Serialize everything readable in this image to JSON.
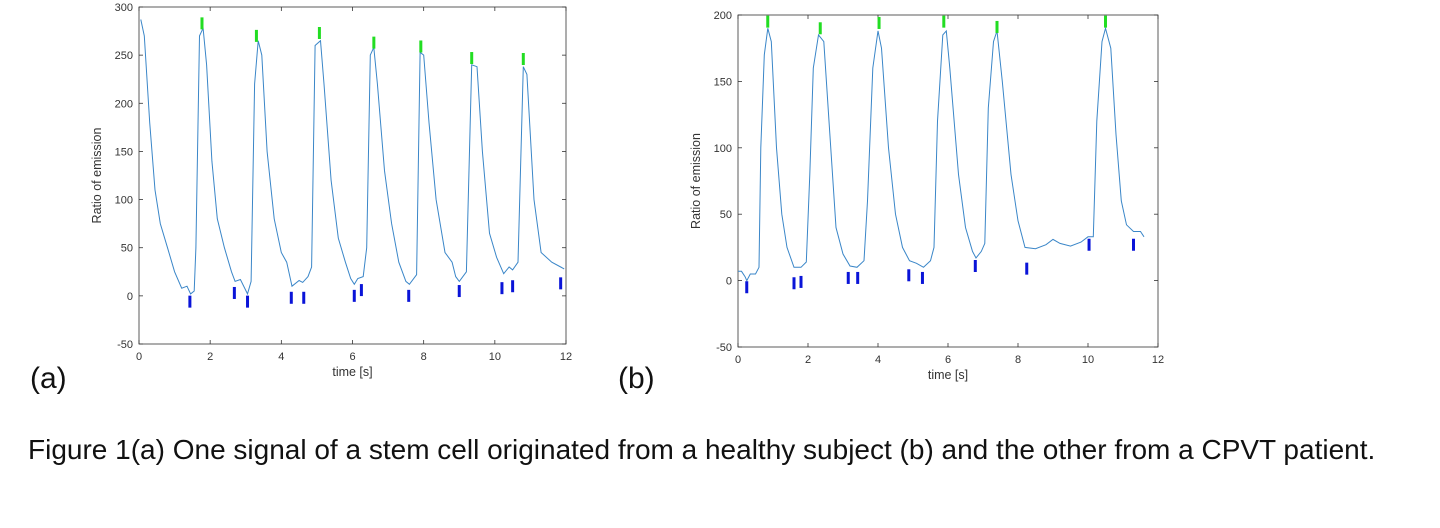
{
  "chart_data": [
    {
      "type": "line",
      "panel_label": "(a)",
      "xlabel": "time [s]",
      "ylabel": "Ratio of emission",
      "xlim": [
        0,
        12
      ],
      "ylim": [
        -50,
        300
      ],
      "xticks": [
        0,
        2,
        4,
        6,
        8,
        10,
        12
      ],
      "yticks": [
        -50,
        0,
        50,
        100,
        150,
        200,
        250,
        300
      ],
      "grid": false,
      "line_color": "#3a86c8",
      "peak_marker_color": "#22dd22",
      "trough_marker_color": "#0a14d8",
      "x": [
        0.05,
        0.15,
        0.3,
        0.45,
        0.6,
        0.8,
        1.0,
        1.2,
        1.35,
        1.45,
        1.55,
        1.6,
        1.7,
        1.8,
        1.9,
        2.05,
        2.2,
        2.4,
        2.6,
        2.7,
        2.85,
        3.05,
        3.15,
        3.25,
        3.35,
        3.45,
        3.6,
        3.8,
        4.0,
        4.15,
        4.3,
        4.5,
        4.6,
        4.75,
        4.85,
        4.95,
        5.1,
        5.2,
        5.4,
        5.6,
        5.8,
        5.95,
        6.05,
        6.15,
        6.3,
        6.4,
        6.5,
        6.6,
        6.7,
        6.9,
        7.1,
        7.3,
        7.5,
        7.6,
        7.8,
        7.9,
        8.0,
        8.15,
        8.35,
        8.6,
        8.8,
        8.9,
        9.0,
        9.2,
        9.35,
        9.5,
        9.65,
        9.85,
        10.05,
        10.25,
        10.4,
        10.5,
        10.65,
        10.8,
        10.9,
        11.1,
        11.3,
        11.6,
        11.85,
        11.95
      ],
      "y": [
        287,
        270,
        180,
        110,
        75,
        50,
        25,
        8,
        10,
        2,
        5,
        50,
        270,
        278,
        240,
        140,
        80,
        50,
        25,
        15,
        17,
        2,
        15,
        220,
        265,
        250,
        150,
        80,
        45,
        35,
        10,
        16,
        14,
        20,
        30,
        260,
        265,
        220,
        120,
        60,
        35,
        18,
        12,
        18,
        20,
        50,
        250,
        258,
        220,
        130,
        75,
        35,
        15,
        12,
        22,
        253,
        250,
        180,
        100,
        45,
        35,
        20,
        15,
        25,
        240,
        238,
        150,
        65,
        40,
        23,
        30,
        27,
        35,
        238,
        230,
        100,
        45,
        35,
        30,
        28
      ],
      "peaks": [
        [
          1.77,
          283
        ],
        [
          3.3,
          270
        ],
        [
          5.07,
          273
        ],
        [
          6.6,
          263
        ],
        [
          7.92,
          259
        ],
        [
          9.35,
          247
        ],
        [
          10.8,
          246
        ]
      ],
      "troughs": [
        [
          1.43,
          -6
        ],
        [
          2.68,
          3
        ],
        [
          3.05,
          -6
        ],
        [
          4.28,
          -2
        ],
        [
          4.63,
          -2
        ],
        [
          6.05,
          0
        ],
        [
          6.25,
          6
        ],
        [
          7.58,
          0
        ],
        [
          9.0,
          5
        ],
        [
          10.2,
          8
        ],
        [
          10.5,
          10
        ],
        [
          11.85,
          13
        ]
      ]
    },
    {
      "type": "line",
      "panel_label": "(b)",
      "xlabel": "time [s]",
      "ylabel": "Ratio of emission",
      "xlim": [
        0,
        12
      ],
      "ylim": [
        -50,
        200
      ],
      "xticks": [
        0,
        2,
        4,
        6,
        8,
        10,
        12
      ],
      "yticks": [
        -50,
        0,
        50,
        100,
        150,
        200
      ],
      "grid": false,
      "line_color": "#3a86c8",
      "peak_marker_color": "#22dd22",
      "trough_marker_color": "#0a14d8",
      "x": [
        0,
        0.1,
        0.2,
        0.25,
        0.35,
        0.5,
        0.6,
        0.65,
        0.75,
        0.85,
        0.95,
        1.1,
        1.25,
        1.4,
        1.6,
        1.8,
        1.95,
        2.05,
        2.15,
        2.3,
        2.45,
        2.6,
        2.8,
        3.0,
        3.2,
        3.4,
        3.6,
        3.7,
        3.85,
        4.0,
        4.1,
        4.3,
        4.5,
        4.7,
        4.9,
        5.1,
        5.3,
        5.5,
        5.6,
        5.7,
        5.85,
        5.95,
        6.05,
        6.3,
        6.5,
        6.7,
        6.8,
        6.95,
        7.05,
        7.15,
        7.3,
        7.4,
        7.55,
        7.8,
        8.0,
        8.2,
        8.5,
        8.8,
        9.0,
        9.2,
        9.5,
        9.8,
        10.0,
        10.15,
        10.25,
        10.4,
        10.5,
        10.65,
        10.8,
        10.95,
        11.1,
        11.3,
        11.5,
        11.6
      ],
      "y": [
        7,
        7,
        3,
        0,
        5,
        5,
        10,
        100,
        170,
        190,
        180,
        100,
        50,
        25,
        10,
        10,
        14,
        80,
        160,
        185,
        180,
        120,
        40,
        20,
        11,
        10,
        15,
        60,
        160,
        188,
        175,
        100,
        50,
        25,
        15,
        13,
        10,
        15,
        25,
        120,
        185,
        188,
        160,
        80,
        40,
        22,
        17,
        22,
        28,
        130,
        180,
        188,
        150,
        80,
        45,
        25,
        24,
        27,
        31,
        28,
        26,
        29,
        33,
        33,
        120,
        180,
        190,
        175,
        110,
        60,
        42,
        37,
        37,
        33
      ],
      "peaks": [
        [
          0.85,
          195
        ],
        [
          2.35,
          190
        ],
        [
          4.03,
          194
        ],
        [
          5.88,
          195
        ],
        [
          7.4,
          191
        ],
        [
          10.5,
          195
        ]
      ],
      "troughs": [
        [
          0.25,
          -5
        ],
        [
          1.6,
          -2
        ],
        [
          1.8,
          -1
        ],
        [
          3.15,
          2
        ],
        [
          3.42,
          2
        ],
        [
          4.88,
          4
        ],
        [
          5.27,
          2
        ],
        [
          6.78,
          11
        ],
        [
          8.25,
          9
        ],
        [
          10.03,
          27
        ],
        [
          11.3,
          27
        ]
      ]
    }
  ],
  "caption": "Figure 1(a) One signal of a stem cell originated from a healthy subject (b) and the other from a CPVT patient."
}
